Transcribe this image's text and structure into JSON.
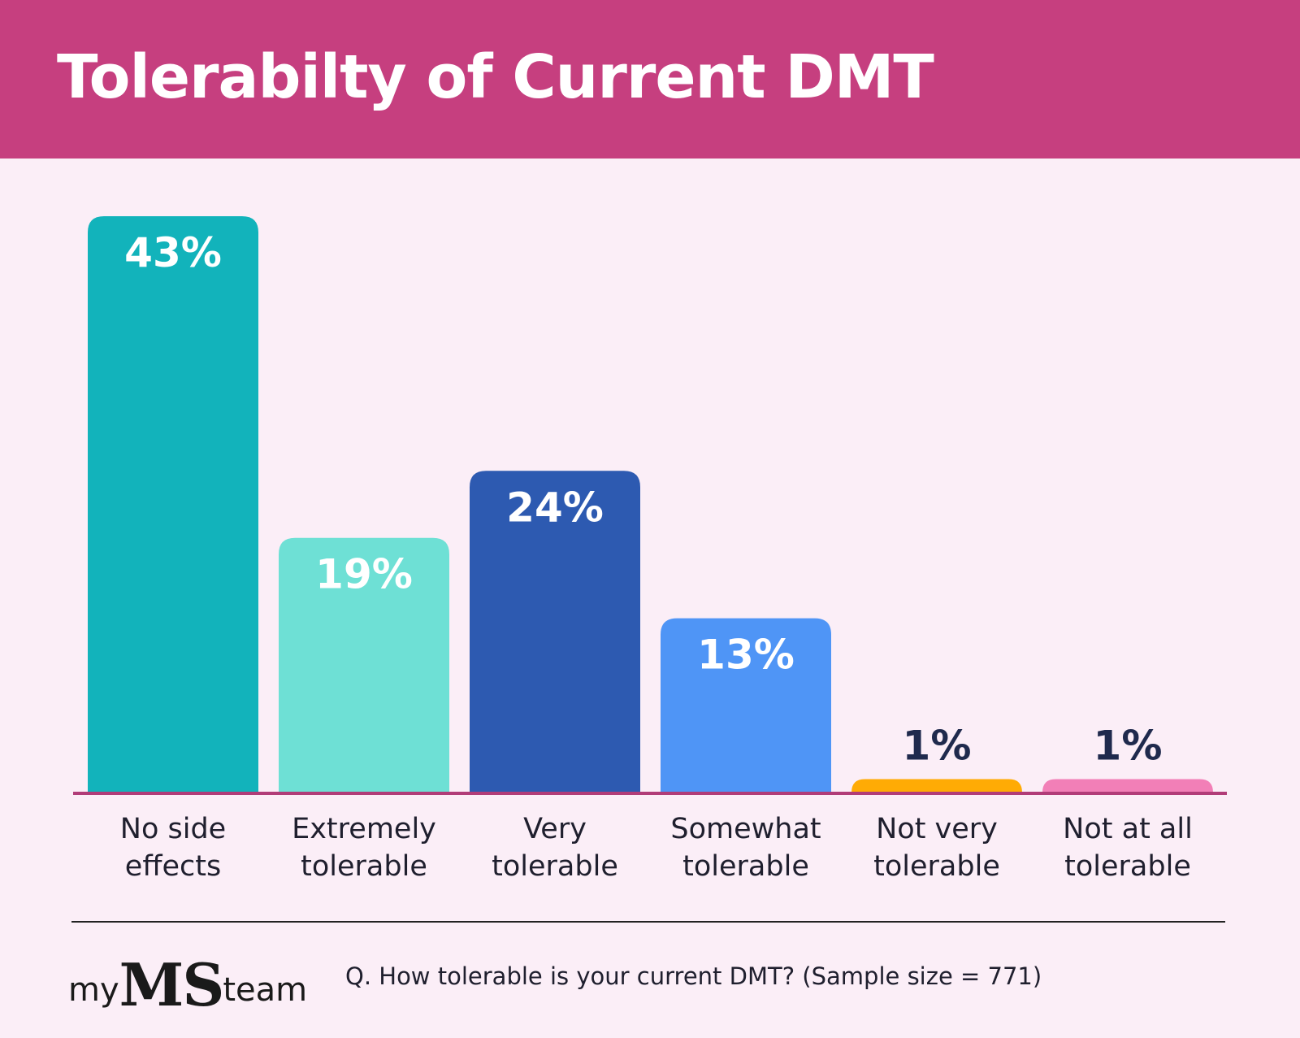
{
  "header": {
    "title": "Tolerabilty of Current DMT"
  },
  "chart_data": {
    "type": "bar",
    "title": "Tolerabilty of Current DMT",
    "categories": [
      [
        "No side",
        "effects"
      ],
      [
        "Extremely",
        "tolerable"
      ],
      [
        "Very",
        "tolerable"
      ],
      [
        "Somewhat",
        "tolerable"
      ],
      [
        "Not very",
        "tolerable"
      ],
      [
        "Not at all",
        "tolerable"
      ]
    ],
    "values": [
      43,
      19,
      24,
      13,
      1,
      1
    ],
    "value_labels": [
      "43%",
      "19%",
      "24%",
      "13%",
      "1%",
      "1%"
    ],
    "colors": [
      "#12b3bb",
      "#6ee0d5",
      "#2d5ab1",
      "#4f95f6",
      "#ffab05",
      "#f27fb7"
    ],
    "label_colors": [
      "#ffffff",
      "#ffffff",
      "#ffffff",
      "#ffffff",
      "#1f2a4d",
      "#1f2a4d"
    ],
    "axis_color": "#b13c78",
    "ylim": [
      0,
      43
    ],
    "grid": false,
    "legend": "none"
  },
  "footer": {
    "logo": {
      "my": "my",
      "ms": "MS",
      "team": "team"
    },
    "note": "Q. How tolerable is your current DMT? (Sample size = 771)"
  }
}
